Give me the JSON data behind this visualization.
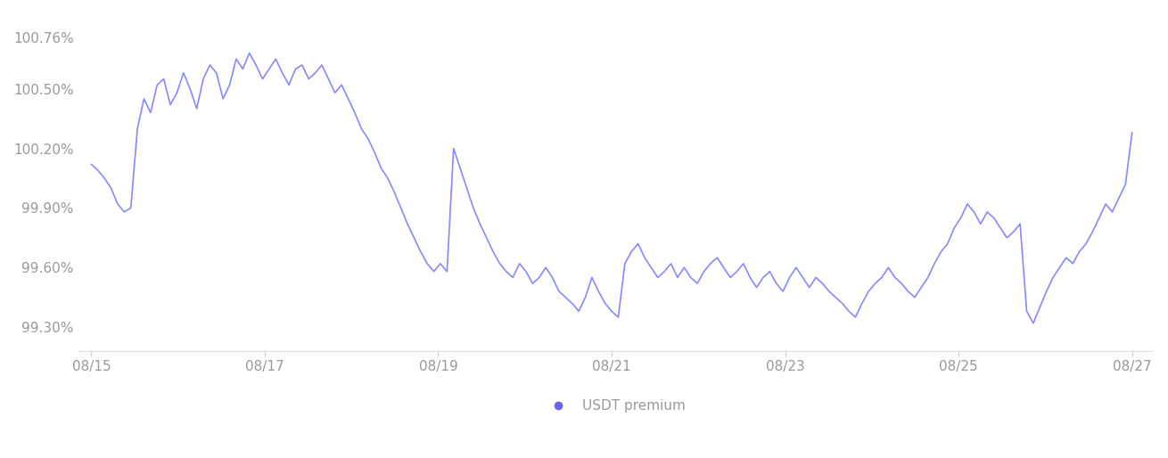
{
  "line_color": "#8888ff",
  "background_color": "#ffffff",
  "legend_label": "USDT premium",
  "legend_dot_color": "#6666ee",
  "label_color": "#999999",
  "yticks": [
    99.3,
    99.6,
    99.9,
    100.2,
    100.5,
    100.76
  ],
  "ytick_labels": [
    "99.30%",
    "99.60%",
    "99.90%",
    "100.20%",
    "100.50%",
    "100.76%"
  ],
  "xtick_labels": [
    "08/15",
    "08/17",
    "08/19",
    "08/21",
    "08/23",
    "08/25",
    "08/27"
  ],
  "ylim": [
    99.18,
    100.88
  ],
  "values": [
    100.12,
    100.09,
    100.05,
    100.0,
    99.92,
    99.88,
    99.9,
    100.3,
    100.45,
    100.38,
    100.52,
    100.55,
    100.42,
    100.48,
    100.58,
    100.5,
    100.4,
    100.55,
    100.62,
    100.58,
    100.45,
    100.52,
    100.65,
    100.6,
    100.68,
    100.62,
    100.55,
    100.6,
    100.65,
    100.58,
    100.52,
    100.6,
    100.62,
    100.55,
    100.58,
    100.62,
    100.55,
    100.48,
    100.52,
    100.45,
    100.38,
    100.3,
    100.25,
    100.18,
    100.1,
    100.05,
    99.98,
    99.9,
    99.82,
    99.75,
    99.68,
    99.62,
    99.58,
    99.62,
    99.58,
    100.2,
    100.1,
    100.0,
    99.9,
    99.82,
    99.75,
    99.68,
    99.62,
    99.58,
    99.55,
    99.62,
    99.58,
    99.52,
    99.55,
    99.6,
    99.55,
    99.48,
    99.45,
    99.42,
    99.38,
    99.45,
    99.55,
    99.48,
    99.42,
    99.38,
    99.35,
    99.62,
    99.68,
    99.72,
    99.65,
    99.6,
    99.55,
    99.58,
    99.62,
    99.55,
    99.6,
    99.55,
    99.52,
    99.58,
    99.62,
    99.65,
    99.6,
    99.55,
    99.58,
    99.62,
    99.55,
    99.5,
    99.55,
    99.58,
    99.52,
    99.48,
    99.55,
    99.6,
    99.55,
    99.5,
    99.55,
    99.52,
    99.48,
    99.45,
    99.42,
    99.38,
    99.35,
    99.42,
    99.48,
    99.52,
    99.55,
    99.6,
    99.55,
    99.52,
    99.48,
    99.45,
    99.5,
    99.55,
    99.62,
    99.68,
    99.72,
    99.8,
    99.85,
    99.92,
    99.88,
    99.82,
    99.88,
    99.85,
    99.8,
    99.75,
    99.78,
    99.82,
    99.38,
    99.32,
    99.4,
    99.48,
    99.55,
    99.6,
    99.65,
    99.62,
    99.68,
    99.72,
    99.78,
    99.85,
    99.92,
    99.88,
    99.95,
    100.02,
    100.28
  ]
}
